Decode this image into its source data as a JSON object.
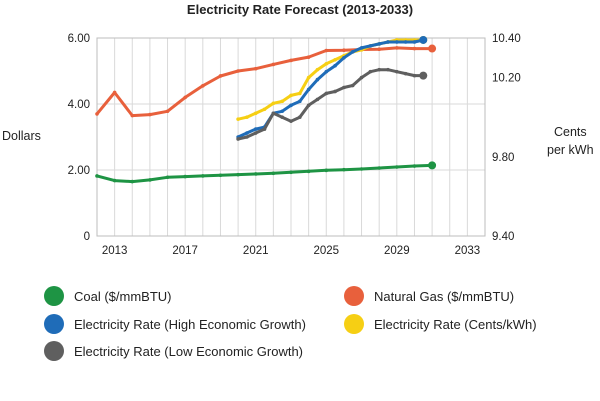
{
  "chart_data": {
    "type": "line",
    "title": "Electricity Rate Forecast (2013-2033)",
    "xlabel": "",
    "ylabel_left": "Dollars",
    "ylabel_right": [
      "Cents",
      "per kWh"
    ],
    "x_ticks": [
      "2013",
      "2017",
      "2021",
      "2025",
      "2029",
      "2033"
    ],
    "xlim": [
      2012,
      2034
    ],
    "y_left_ticks": [
      "0",
      "2.00",
      "4.00",
      "6.00"
    ],
    "y_left_lim": [
      0,
      6
    ],
    "y_right_ticks": [
      "9.40",
      "9.80",
      "10.20",
      "10.40"
    ],
    "y_right_lim": [
      9.4,
      10.4
    ],
    "grid": true,
    "legend_position": "bottom",
    "series": [
      {
        "name": "Natural Gas ($/mmBTU)",
        "axis": "left",
        "color": "#e8603c",
        "x": [
          2012,
          2013,
          2014,
          2015,
          2016,
          2017,
          2018,
          2019,
          2020,
          2021,
          2022,
          2023,
          2024,
          2025,
          2026,
          2027,
          2028,
          2029,
          2030,
          2031
        ],
        "values": [
          3.7,
          4.35,
          3.65,
          3.68,
          3.78,
          4.2,
          4.55,
          4.85,
          5.0,
          5.07,
          5.2,
          5.32,
          5.42,
          5.62,
          5.63,
          5.65,
          5.66,
          5.7,
          5.68,
          5.68
        ]
      },
      {
        "name": "Coal ($/mmBTU)",
        "axis": "left",
        "color": "#1e9444",
        "x": [
          2012,
          2013,
          2014,
          2015,
          2016,
          2017,
          2018,
          2019,
          2020,
          2021,
          2022,
          2023,
          2024,
          2025,
          2026,
          2027,
          2028,
          2029,
          2030,
          2031
        ],
        "values": [
          1.82,
          1.68,
          1.65,
          1.7,
          1.78,
          1.8,
          1.82,
          1.84,
          1.86,
          1.88,
          1.9,
          1.93,
          1.96,
          1.99,
          2.01,
          2.03,
          2.06,
          2.09,
          2.12,
          2.14
        ]
      },
      {
        "name": "Electricity Rate (Cents/kWh)",
        "axis": "right",
        "color": "#f6cf14",
        "x": [
          2020,
          2020.5,
          2021,
          2021.5,
          2022,
          2022.5,
          2023,
          2023.5,
          2024,
          2024.5,
          2025,
          2025.5,
          2026,
          2026.5,
          2027,
          2027.5,
          2028,
          2028.5,
          2029,
          2029.5,
          2030,
          2030.5
        ],
        "values": [
          9.99,
          10.0,
          10.02,
          10.04,
          10.07,
          10.08,
          10.11,
          10.12,
          10.2,
          10.24,
          10.27,
          10.29,
          10.31,
          10.33,
          10.34,
          10.36,
          10.37,
          10.38,
          10.39,
          10.39,
          10.39,
          10.39
        ]
      },
      {
        "name": "Electricity Rate (High Economic Growth)",
        "axis": "right",
        "color": "#1f6cb8",
        "x": [
          2020,
          2020.5,
          2021,
          2021.5,
          2022,
          2022.5,
          2023,
          2023.5,
          2024,
          2024.5,
          2025,
          2025.5,
          2026,
          2026.5,
          2027,
          2027.5,
          2028,
          2028.5,
          2029,
          2029.5,
          2030,
          2030.5
        ],
        "values": [
          9.9,
          9.92,
          9.94,
          9.95,
          10.02,
          10.03,
          10.06,
          10.08,
          10.14,
          10.19,
          10.23,
          10.26,
          10.3,
          10.33,
          10.35,
          10.36,
          10.37,
          10.38,
          10.38,
          10.38,
          10.38,
          10.39
        ]
      },
      {
        "name": "Electricity Rate (Low Economic Growth)",
        "axis": "right",
        "color": "#5f5f5f",
        "x": [
          2020,
          2020.5,
          2021,
          2021.5,
          2022,
          2022.5,
          2023,
          2023.5,
          2024,
          2024.5,
          2025,
          2025.5,
          2026,
          2026.5,
          2027,
          2027.5,
          2028,
          2028.5,
          2029,
          2029.5,
          2030,
          2030.5
        ],
        "values": [
          9.89,
          9.9,
          9.92,
          9.94,
          10.02,
          10.0,
          9.98,
          10.0,
          10.06,
          10.09,
          10.12,
          10.13,
          10.15,
          10.16,
          10.2,
          10.23,
          10.24,
          10.24,
          10.23,
          10.22,
          10.21,
          10.21
        ]
      }
    ]
  },
  "legend": [
    {
      "label": "Coal ($/mmBTU)",
      "color": "#1e9444"
    },
    {
      "label": "Natural Gas ($/mmBTU)",
      "color": "#e8603c"
    },
    {
      "label": "Electricity Rate (High Economic Growth)",
      "color": "#1f6cb8"
    },
    {
      "label": "Electricity Rate (Cents/kWh)",
      "color": "#f6cf14"
    },
    {
      "label": "Electricity Rate (Low Economic Growth)",
      "color": "#5f5f5f"
    }
  ]
}
